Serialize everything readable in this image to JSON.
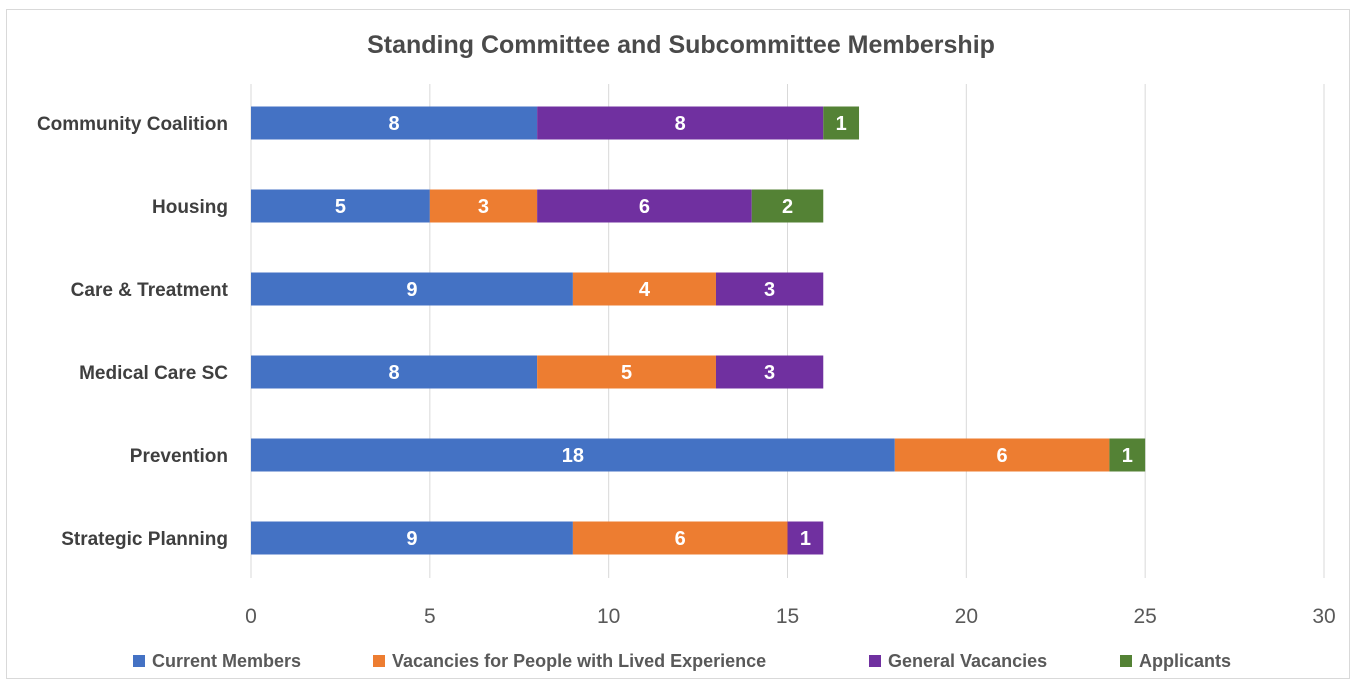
{
  "chart_data": {
    "type": "bar",
    "orientation": "horizontal",
    "stacked": true,
    "title": "Standing Committee and Subcommittee Membership",
    "categories": [
      "Community Coalition",
      "Housing",
      "Care & Treatment",
      "Medical Care SC",
      "Prevention",
      "Strategic Planning"
    ],
    "series": [
      {
        "name": "Current Members",
        "color": "#4472c4",
        "values": [
          8,
          5,
          9,
          8,
          18,
          9
        ]
      },
      {
        "name": "Vacancies for People with Lived Experience",
        "color": "#ed7d31",
        "values": [
          0,
          3,
          4,
          5,
          6,
          6
        ]
      },
      {
        "name": "General Vacancies",
        "color": "#7030a0",
        "values": [
          8,
          6,
          3,
          3,
          0,
          1
        ]
      },
      {
        "name": "Applicants",
        "color": "#548235",
        "values": [
          1,
          2,
          0,
          0,
          1,
          0
        ]
      }
    ],
    "xlim": [
      0,
      30
    ],
    "xticks": [
      0,
      5,
      10,
      15,
      20,
      25,
      30
    ],
    "grid": true,
    "legend_position": "bottom",
    "data_labels": true
  }
}
